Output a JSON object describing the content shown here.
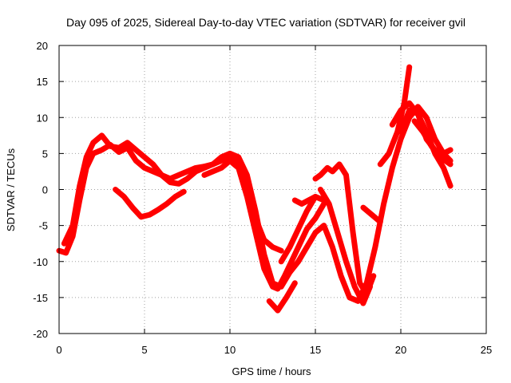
{
  "chart_data": {
    "type": "scatter",
    "title": "Day 095 of 2025, Sidereal Day-to-day VTEC variation (SDTVAR) for receiver gvil",
    "xlabel": "GPS time / hours",
    "ylabel": "SDTVAR / TECUs",
    "xlim": [
      0,
      25
    ],
    "ylim": [
      -20,
      20
    ],
    "xticks": [
      0,
      5,
      10,
      15,
      20,
      25
    ],
    "yticks": [
      -20,
      -15,
      -10,
      -5,
      0,
      5,
      10,
      15,
      20
    ],
    "grid": true,
    "marker_color": "#ff0000",
    "series": [
      {
        "x": [
          0,
          0.4,
          0.8,
          1.2,
          1.6,
          2.0,
          2.5,
          3.0,
          3.5,
          4.0,
          4.5,
          5.0,
          5.5,
          6.0,
          6.5,
          7.0,
          7.5,
          8.0,
          8.5,
          9.0,
          9.5,
          10.0,
          10.5,
          11.0,
          11.5,
          12.0,
          12.5,
          13.0,
          13.5,
          14.0,
          14.5,
          15.0,
          15.5,
          16.0,
          16.5,
          17.0,
          17.5,
          18.0,
          18.5,
          19.0,
          19.5,
          20.0,
          20.5,
          21.0,
          21.5,
          22.0,
          22.5,
          22.9
        ],
        "y": [
          -8.5,
          -8.8,
          -6.5,
          -1.5,
          3.0,
          5.0,
          5.5,
          6.2,
          5.2,
          5.8,
          4.0,
          3.0,
          2.5,
          2.0,
          1.5,
          2.0,
          2.5,
          3.0,
          3.2,
          3.5,
          4.5,
          5.0,
          4.5,
          2.0,
          -3.0,
          -9.0,
          -13.0,
          -13.5,
          -11.5,
          -10.0,
          -8.0,
          -6.0,
          -5.0,
          -8.0,
          -12.0,
          -15.0,
          -15.5,
          -13.0,
          -8.0,
          -2.0,
          3.0,
          7.0,
          10.0,
          11.5,
          10.0,
          7.0,
          5.0,
          4.0
        ]
      },
      {
        "x": [
          0.3,
          0.8,
          1.2,
          1.6,
          2.0,
          2.5,
          3.0,
          3.5,
          4.0,
          4.5,
          5.0,
          5.5,
          6.0,
          6.5,
          7.0,
          7.5,
          8.0,
          8.5,
          9.0,
          9.5,
          10.0,
          10.5,
          11.0,
          11.5,
          12.0,
          12.5,
          13.0
        ],
        "y": [
          -7.5,
          -5.0,
          0.5,
          4.5,
          6.5,
          7.5,
          6.0,
          5.8,
          6.5,
          5.5,
          4.5,
          3.5,
          2.0,
          1.0,
          0.8,
          1.5,
          2.5,
          3.0,
          3.5,
          4.0,
          4.5,
          3.5,
          1.0,
          -4.0,
          -7.0,
          -8.0,
          -8.5
        ]
      },
      {
        "x": [
          3.3,
          3.8,
          4.3,
          4.8,
          5.3,
          5.8,
          6.3,
          6.8,
          7.3
        ],
        "y": [
          0.0,
          -1.0,
          -2.5,
          -3.8,
          -3.5,
          -2.8,
          -2.0,
          -1.0,
          -0.3
        ]
      },
      {
        "x": [
          8.5,
          9.0,
          9.5,
          10.0,
          10.5,
          11.0,
          11.5,
          12.0,
          12.5,
          12.8,
          13.2,
          13.5,
          14.0,
          14.5,
          15.0,
          15.5
        ],
        "y": [
          2.0,
          2.5,
          3.0,
          4.0,
          3.0,
          -1.0,
          -6.0,
          -11.0,
          -13.5,
          -13.8,
          -12.0,
          -10.5,
          -8.0,
          -5.5,
          -4.0,
          -2.0
        ]
      },
      {
        "x": [
          12.3,
          12.8,
          13.3,
          13.8
        ],
        "y": [
          -15.5,
          -16.8,
          -15.0,
          -13.0
        ]
      },
      {
        "x": [
          13.0,
          13.5,
          14.0,
          14.5,
          15.0,
          15.5
        ],
        "y": [
          -10.0,
          -8.0,
          -5.5,
          -3.0,
          -1.0,
          -1.5
        ]
      },
      {
        "x": [
          13.8,
          14.2,
          14.6,
          15.0
        ],
        "y": [
          -1.5,
          -2.0,
          -1.5,
          -1.0
        ]
      },
      {
        "x": [
          15.0,
          15.3,
          15.7,
          16.0,
          16.4,
          16.8,
          17.2,
          17.6,
          18.0,
          18.4
        ],
        "y": [
          1.5,
          2.0,
          3.0,
          2.5,
          3.5,
          2.0,
          -6.0,
          -13.0,
          -14.5,
          -12.0
        ]
      },
      {
        "x": [
          15.3,
          15.8,
          16.3,
          16.8,
          17.3,
          17.8,
          18.2
        ],
        "y": [
          0.0,
          -2.0,
          -6.0,
          -10.0,
          -13.5,
          -15.8,
          -13.5
        ]
      },
      {
        "x": [
          17.8,
          18.3,
          18.8
        ],
        "y": [
          -2.5,
          -3.5,
          -4.5
        ]
      },
      {
        "x": [
          18.8,
          19.3,
          19.8,
          20.2,
          20.5
        ],
        "y": [
          3.5,
          5.0,
          8.0,
          12.0,
          17.0
        ]
      },
      {
        "x": [
          19.5,
          20.0,
          20.5,
          21.0,
          21.5,
          22.0,
          22.5,
          22.9
        ],
        "y": [
          9.0,
          11.0,
          12.0,
          10.5,
          8.0,
          5.0,
          3.0,
          0.5
        ]
      },
      {
        "x": [
          20.0,
          20.5,
          21.0,
          21.5,
          22.0,
          22.5,
          22.9
        ],
        "y": [
          8.0,
          11.0,
          10.5,
          7.0,
          5.5,
          5.0,
          5.5
        ]
      },
      {
        "x": [
          20.8,
          21.3,
          21.8,
          22.3,
          22.9
        ],
        "y": [
          9.5,
          8.0,
          6.0,
          4.5,
          3.5
        ]
      }
    ]
  }
}
